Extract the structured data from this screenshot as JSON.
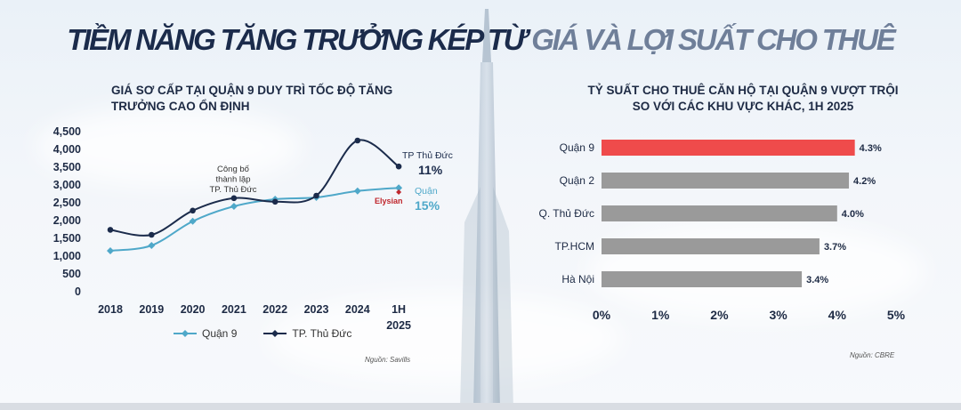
{
  "title": {
    "part1": "TIỀM NĂNG TĂNG TRƯỞNG KÉP TỪ",
    "part2": "GIÁ VÀ LỢI SUẤT CHO THUÊ"
  },
  "colors": {
    "navy": "#1b2b4b",
    "teal": "#4fa8c9",
    "red_bar": "#ef4b4b",
    "gray_bar": "#9a9a9a",
    "elysian_red": "#c0272d"
  },
  "chart_data": [
    {
      "type": "line",
      "title": "GIÁ SƠ CẤP TẠI QUẬN 9 DUY TRÌ TỐC ĐỘ TĂNG TRƯỞNG CAO ỔN ĐỊNH",
      "x": [
        "2018",
        "2019",
        "2020",
        "2021",
        "2022",
        "2023",
        "2024",
        "1H 2025"
      ],
      "ylim": [
        0,
        4500
      ],
      "yticks": [
        "0",
        "500",
        "1,000",
        "1,500",
        "2,000",
        "2,500",
        "3,000",
        "3,500",
        "4,000",
        "4,500"
      ],
      "series": [
        {
          "name": "Quận 9",
          "color": "#4fa8c9",
          "values": [
            1150,
            1300,
            1980,
            2400,
            2600,
            2650,
            2830,
            2920
          ]
        },
        {
          "name": "TP. Thủ Đức",
          "color": "#1b2b4b",
          "values": [
            1740,
            1600,
            2280,
            2630,
            2530,
            2700,
            4250,
            3520
          ]
        }
      ],
      "annotations": {
        "event": "Công bố thành lập TP. Thủ Đức",
        "tp_label": "TP Thủ Đức",
        "tp_growth": "11%",
        "q9_label": "Quận",
        "q9_growth": "15%",
        "elysian_label": "Elysian",
        "elysian_value": 2800
      },
      "source": "Nguồn: Savills"
    },
    {
      "type": "bar",
      "orientation": "horizontal",
      "title": "TỶ SUẤT CHO THUÊ CĂN HỘ TẠI QUẬN 9 VƯỢT TRỘI SO VỚI CÁC KHU VỰC KHÁC, 1H 2025",
      "categories": [
        "Quận 9",
        "Quận 2",
        "Q. Thủ Đức",
        "TP.HCM",
        "Hà Nội"
      ],
      "values": [
        4.3,
        4.2,
        4.0,
        3.7,
        3.4
      ],
      "value_labels": [
        "4.3%",
        "4.2%",
        "4.0%",
        "3.7%",
        "3.4%"
      ],
      "highlight": "Quận 9",
      "xlim": [
        0,
        5
      ],
      "xticks": [
        "0%",
        "1%",
        "2%",
        "3%",
        "4%",
        "5%"
      ],
      "source": "Nguồn: CBRE"
    }
  ]
}
